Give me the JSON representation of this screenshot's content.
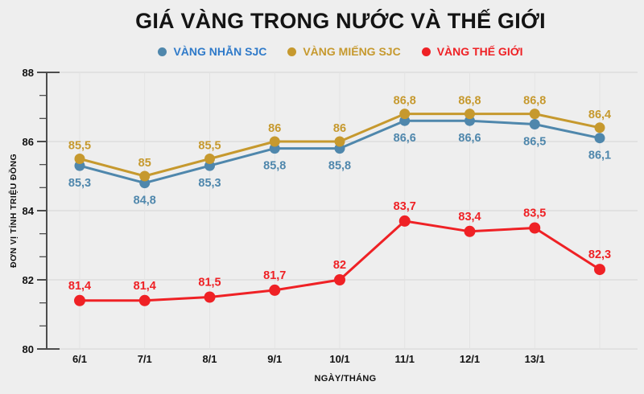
{
  "chart_data": {
    "type": "line",
    "title": "GIÁ VÀNG TRONG NƯỚC VÀ THẾ GIỚI",
    "xlabel": "NGÀY/THÁNG",
    "ylabel": "ĐƠN VỊ TÍNH TRIỆU ĐỒNG",
    "ylim": [
      80,
      88
    ],
    "yticks": [
      80,
      82,
      84,
      86,
      88
    ],
    "minor_ticks_per_major_interval": 2,
    "grid": true,
    "legend_position": "top",
    "unit": "triệu đồng",
    "categories": [
      "6/1",
      "7/1",
      "8/1",
      "9/1",
      "10/1",
      "11/1",
      "12/1",
      "13/1",
      ""
    ],
    "series": [
      {
        "name": "VÀNG NHẪN SJC",
        "color": "#4f87ac",
        "legend_text_color": "#2f7ac9",
        "label_position": "below",
        "values": [
          85.3,
          84.8,
          85.3,
          85.8,
          85.8,
          86.6,
          86.6,
          86.5,
          86.1
        ],
        "labels": [
          "85,3",
          "84,8",
          "85,3",
          "85,8",
          "85,8",
          "86,6",
          "86,6",
          "86,5",
          "86,1"
        ]
      },
      {
        "name": "VÀNG MIẾNG SJC",
        "color": "#c6992e",
        "legend_text_color": "#c6992e",
        "label_position": "above",
        "values": [
          85.5,
          85,
          85.5,
          86,
          86,
          86.8,
          86.8,
          86.8,
          86.4
        ],
        "labels": [
          "85,5",
          "85",
          "85,5",
          "86",
          "86",
          "86,8",
          "86,8",
          "86,8",
          "86,4"
        ]
      },
      {
        "name": "VÀNG THẾ GIỚI",
        "color": "#ef2125",
        "legend_text_color": "#ef2125",
        "label_position": "above",
        "values": [
          81.4,
          81.4,
          81.5,
          81.7,
          82,
          83.7,
          83.4,
          83.5,
          82.3
        ],
        "labels": [
          "81,4",
          "81,4",
          "81,5",
          "81,7",
          "82",
          "83,7",
          "83,4",
          "83,5",
          "82,3"
        ]
      }
    ],
    "layout": {
      "background": "#eeeeee",
      "axis_color": "#4d4d4d",
      "grid_color": "#d9d9d9",
      "point_grid_color": "#e3e3e3",
      "tick_label_color": "#111111",
      "axis_title_color": "#111111"
    }
  }
}
